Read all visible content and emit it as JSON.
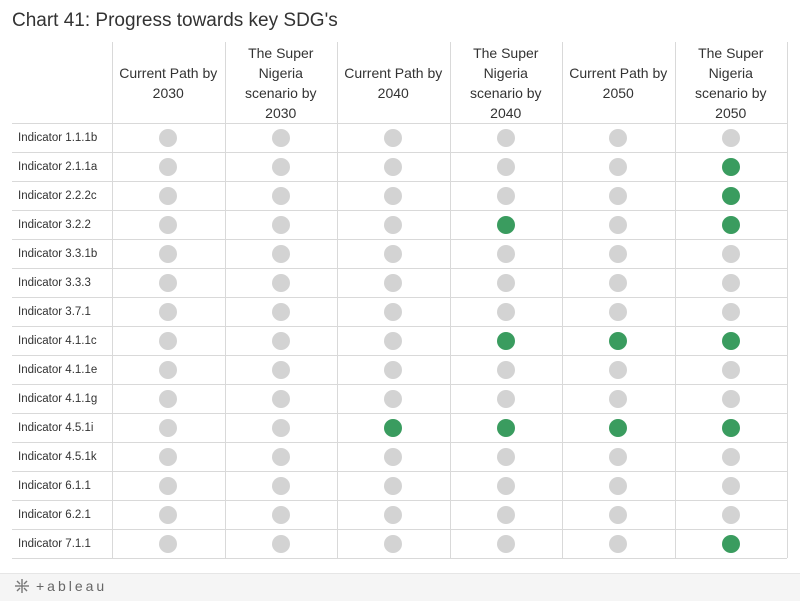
{
  "title": "Chart 41: Progress towards key SDG's",
  "colors": {
    "achieved": "#3a9c5f",
    "not_achieved": "#d3d3d3",
    "gridline": "#d9d9d9"
  },
  "footer": {
    "brand_icon": "tableau-logo-icon",
    "brand_text": "+ableau"
  },
  "chart_data": {
    "type": "table",
    "title": "Chart 41: Progress towards key SDG's",
    "columns": [
      "Current Path by 2030",
      "The Super Nigeria scenario by 2030",
      "Current Path by 2040",
      "The Super Nigeria scenario by 2040",
      "Current Path by 2050",
      "The Super Nigeria scenario by 2050"
    ],
    "rows": [
      {
        "label": "Indicator 1.1.1b",
        "values": [
          0,
          0,
          0,
          0,
          0,
          0
        ]
      },
      {
        "label": "Indicator 2.1.1a",
        "values": [
          0,
          0,
          0,
          0,
          0,
          1
        ]
      },
      {
        "label": "Indicator 2.2.2c",
        "values": [
          0,
          0,
          0,
          0,
          0,
          1
        ]
      },
      {
        "label": "Indicator 3.2.2",
        "values": [
          0,
          0,
          0,
          1,
          0,
          1
        ]
      },
      {
        "label": "Indicator 3.3.1b",
        "values": [
          0,
          0,
          0,
          0,
          0,
          0
        ]
      },
      {
        "label": "Indicator 3.3.3",
        "values": [
          0,
          0,
          0,
          0,
          0,
          0
        ]
      },
      {
        "label": "Indicator 3.7.1",
        "values": [
          0,
          0,
          0,
          0,
          0,
          0
        ]
      },
      {
        "label": "Indicator 4.1.1c",
        "values": [
          0,
          0,
          0,
          1,
          1,
          1
        ]
      },
      {
        "label": "Indicator 4.1.1e",
        "values": [
          0,
          0,
          0,
          0,
          0,
          0
        ]
      },
      {
        "label": "Indicator 4.1.1g",
        "values": [
          0,
          0,
          0,
          0,
          0,
          0
        ]
      },
      {
        "label": "Indicator 4.5.1i",
        "values": [
          0,
          0,
          1,
          1,
          1,
          1
        ]
      },
      {
        "label": "Indicator 4.5.1k",
        "values": [
          0,
          0,
          0,
          0,
          0,
          0
        ]
      },
      {
        "label": "Indicator 6.1.1",
        "values": [
          0,
          0,
          0,
          0,
          0,
          0
        ]
      },
      {
        "label": "Indicator 6.2.1",
        "values": [
          0,
          0,
          0,
          0,
          0,
          0
        ]
      },
      {
        "label": "Indicator 7.1.1",
        "values": [
          0,
          0,
          0,
          0,
          0,
          1
        ]
      }
    ]
  }
}
